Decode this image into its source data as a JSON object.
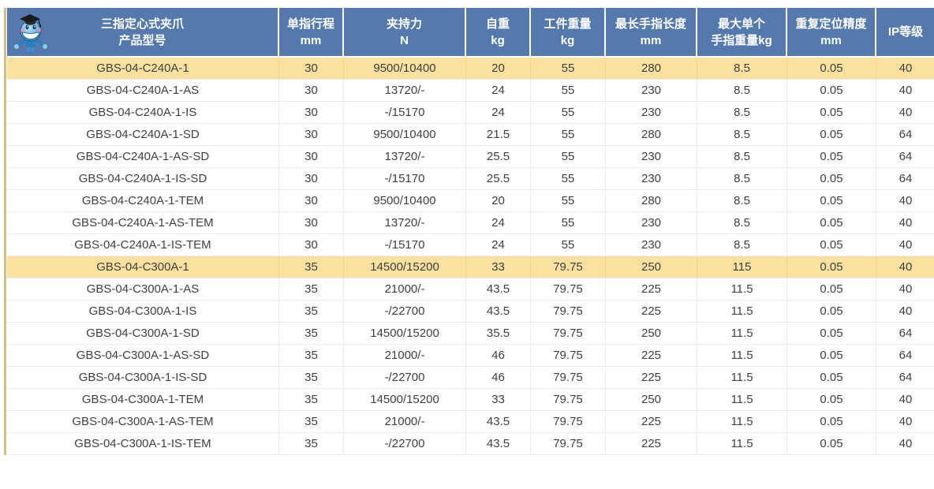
{
  "theme": {
    "header_bg": "#5579ad",
    "header_text": "#ffffff",
    "highlight_row_bg": "#fbe1a0",
    "row_bg": "#ffffff",
    "cell_border": "#ececec",
    "outer_left_border": "#d4bc82",
    "data_text": "#3f3f3f"
  },
  "table": {
    "logo_icon": "mascot-robot-icon",
    "columns": [
      {
        "key": "model",
        "lines": [
          "三指定心式夹爪",
          "产品型号"
        ]
      },
      {
        "key": "stroke_mm",
        "lines": [
          "单指行程",
          "mm"
        ]
      },
      {
        "key": "force_n",
        "lines": [
          "夹持力",
          "N"
        ]
      },
      {
        "key": "self_weight_kg",
        "lines": [
          "自重",
          "kg"
        ]
      },
      {
        "key": "workpiece_weight_kg",
        "lines": [
          "工件重量",
          "kg"
        ]
      },
      {
        "key": "max_finger_length_mm",
        "lines": [
          "最长手指长度",
          "mm"
        ]
      },
      {
        "key": "max_single_finger_weight_kg",
        "lines": [
          "最大单个",
          "手指重量kg"
        ]
      },
      {
        "key": "repeat_accuracy_mm",
        "lines": [
          "重复定位精度",
          "mm"
        ]
      },
      {
        "key": "ip_rating",
        "lines": [
          "IP等级"
        ]
      }
    ],
    "rows": [
      {
        "highlighted": true,
        "cells": [
          "GBS-04-C240A-1",
          "30",
          "9500/10400",
          "20",
          "55",
          "280",
          "8.5",
          "0.05",
          "40"
        ]
      },
      {
        "highlighted": false,
        "cells": [
          "GBS-04-C240A-1-AS",
          "30",
          "13720/-",
          "24",
          "55",
          "230",
          "8.5",
          "0.05",
          "40"
        ]
      },
      {
        "highlighted": false,
        "cells": [
          "GBS-04-C240A-1-IS",
          "30",
          "-/15170",
          "24",
          "55",
          "230",
          "8.5",
          "0.05",
          "40"
        ]
      },
      {
        "highlighted": false,
        "cells": [
          "GBS-04-C240A-1-SD",
          "30",
          "9500/10400",
          "21.5",
          "55",
          "280",
          "8.5",
          "0.05",
          "64"
        ]
      },
      {
        "highlighted": false,
        "cells": [
          "GBS-04-C240A-1-AS-SD",
          "30",
          "13720/-",
          "25.5",
          "55",
          "230",
          "8.5",
          "0.05",
          "64"
        ]
      },
      {
        "highlighted": false,
        "cells": [
          "GBS-04-C240A-1-IS-SD",
          "30",
          "-/15170",
          "25.5",
          "55",
          "230",
          "8.5",
          "0.05",
          "64"
        ]
      },
      {
        "highlighted": false,
        "cells": [
          "GBS-04-C240A-1-TEM",
          "30",
          "9500/10400",
          "20",
          "55",
          "280",
          "8.5",
          "0.05",
          "40"
        ]
      },
      {
        "highlighted": false,
        "cells": [
          "GBS-04-C240A-1-AS-TEM",
          "30",
          "13720/-",
          "24",
          "55",
          "230",
          "8.5",
          "0.05",
          "40"
        ]
      },
      {
        "highlighted": false,
        "cells": [
          "GBS-04-C240A-1-IS-TEM",
          "30",
          "-/15170",
          "24",
          "55",
          "230",
          "8.5",
          "0.05",
          "40"
        ]
      },
      {
        "highlighted": true,
        "cells": [
          "GBS-04-C300A-1",
          "35",
          "14500/15200",
          "33",
          "79.75",
          "250",
          "115",
          "0.05",
          "40"
        ]
      },
      {
        "highlighted": false,
        "cells": [
          "GBS-04-C300A-1-AS",
          "35",
          "21000/-",
          "43.5",
          "79.75",
          "225",
          "11.5",
          "0.05",
          "40"
        ]
      },
      {
        "highlighted": false,
        "cells": [
          "GBS-04-C300A-1-IS",
          "35",
          "-/22700",
          "43.5",
          "79.75",
          "225",
          "11.5",
          "0.05",
          "40"
        ]
      },
      {
        "highlighted": false,
        "cells": [
          "GBS-04-C300A-1-SD",
          "35",
          "14500/15200",
          "35.5",
          "79.75",
          "250",
          "11.5",
          "0.05",
          "64"
        ]
      },
      {
        "highlighted": false,
        "cells": [
          "GBS-04-C300A-1-AS-SD",
          "35",
          "21000/-",
          "46",
          "79.75",
          "225",
          "11.5",
          "0.05",
          "64"
        ]
      },
      {
        "highlighted": false,
        "cells": [
          "GBS-04-C300A-1-IS-SD",
          "35",
          "-/22700",
          "46",
          "79.75",
          "225",
          "11.5",
          "0.05",
          "64"
        ]
      },
      {
        "highlighted": false,
        "cells": [
          "GBS-04-C300A-1-TEM",
          "35",
          "14500/15200",
          "33",
          "79.75",
          "250",
          "11.5",
          "0.05",
          "40"
        ]
      },
      {
        "highlighted": false,
        "cells": [
          "GBS-04-C300A-1-AS-TEM",
          "35",
          "21000/-",
          "43.5",
          "79.75",
          "225",
          "11.5",
          "0.05",
          "40"
        ]
      },
      {
        "highlighted": false,
        "cells": [
          "GBS-04-C300A-1-IS-TEM",
          "35",
          "-/22700",
          "43.5",
          "79.75",
          "225",
          "11.5",
          "0.05",
          "40"
        ]
      }
    ]
  }
}
